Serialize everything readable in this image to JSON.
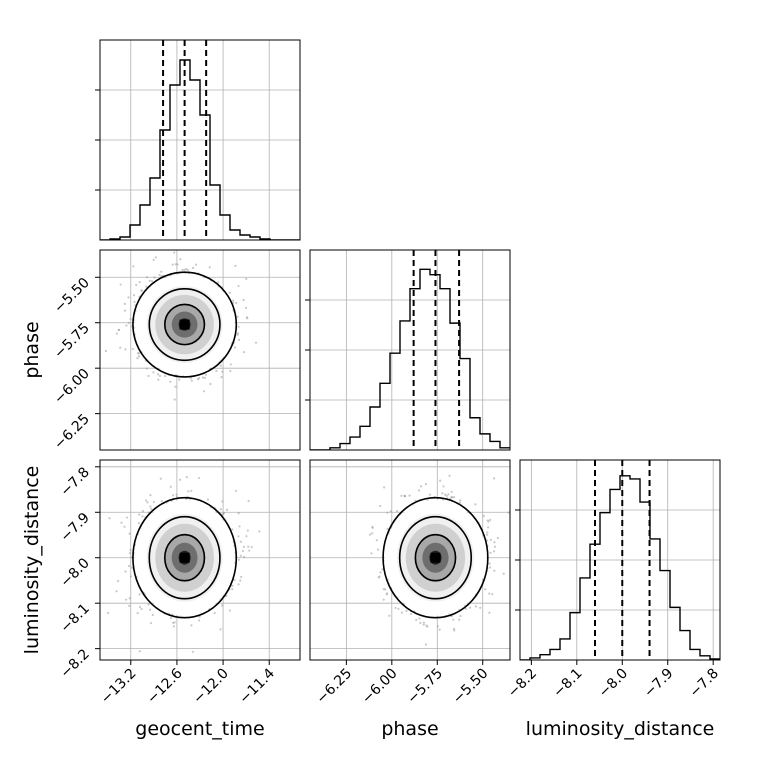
{
  "chart_data": {
    "type": "corner",
    "parameters": [
      {
        "name": "geocent_time",
        "label": "geocent_time",
        "range": [
          -13.6,
          -11.0
        ],
        "ticks": [
          -13.2,
          -12.6,
          -12.0,
          -11.4
        ],
        "tick_labels": [
          "−13.2",
          "−12.6",
          "−12.0",
          "−11.4"
        ],
        "quantiles": [
          -12.78,
          -12.5,
          -12.22
        ],
        "mean": -12.5,
        "sd": 0.28
      },
      {
        "name": "phase",
        "label": "phase",
        "range": [
          -6.45,
          -5.35
        ],
        "ticks": [
          -6.25,
          -6.0,
          -5.75,
          -5.5
        ],
        "tick_labels": [
          "−6.25",
          "−6.00",
          "−5.75",
          "−5.50"
        ],
        "quantiles": [
          -5.88,
          -5.76,
          -5.63
        ],
        "mean": -5.76,
        "sd": 0.12
      },
      {
        "name": "luminosity_distance",
        "label": "luminosity_distance",
        "range": [
          -8.225,
          -7.785
        ],
        "ticks": [
          -8.2,
          -8.1,
          -8.0,
          -7.9,
          -7.8
        ],
        "tick_labels": [
          "−8.2",
          "−8.1",
          "−8.0",
          "−7.9",
          "−7.8"
        ],
        "quantiles": [
          -8.06,
          -8.0,
          -7.94
        ],
        "mean": -8.0,
        "sd": 0.055
      }
    ],
    "histograms": [
      {
        "param": "geocent_time",
        "bin_edges": [
          -13.6,
          -13.47,
          -13.34,
          -13.21,
          -13.08,
          -12.95,
          -12.82,
          -12.69,
          -12.56,
          -12.43,
          -12.3,
          -12.17,
          -12.04,
          -11.91,
          -11.78,
          -11.65,
          -11.52,
          -11.39,
          -11.26,
          -11.13,
          -11.0
        ],
        "counts": [
          0,
          1,
          3,
          15,
          35,
          62,
          110,
          155,
          180,
          160,
          125,
          55,
          25,
          10,
          5,
          3,
          1,
          0,
          0,
          0
        ],
        "ymax": 200
      },
      {
        "param": "phase",
        "bin_edges": [
          -6.45,
          -6.395,
          -6.34,
          -6.285,
          -6.23,
          -6.175,
          -6.12,
          -6.065,
          -6.01,
          -5.955,
          -5.9,
          -5.845,
          -5.79,
          -5.735,
          -5.68,
          -5.625,
          -5.57,
          -5.515,
          -5.46,
          -5.405,
          -5.35
        ],
        "counts": [
          0,
          0,
          2,
          6,
          12,
          22,
          40,
          62,
          90,
          120,
          150,
          168,
          163,
          150,
          118,
          85,
          30,
          15,
          8,
          2
        ],
        "ymax": 186
      },
      {
        "param": "luminosity_distance",
        "bin_edges": [
          -8.225,
          -8.203,
          -8.181,
          -8.159,
          -8.137,
          -8.115,
          -8.093,
          -8.071,
          -8.049,
          -8.027,
          -8.005,
          -7.983,
          -7.961,
          -7.939,
          -7.917,
          -7.895,
          -7.873,
          -7.851,
          -7.829,
          -7.807,
          -7.785
        ],
        "counts": [
          0,
          2,
          5,
          10,
          20,
          45,
          78,
          110,
          140,
          162,
          175,
          172,
          150,
          115,
          85,
          50,
          28,
          10,
          4,
          1
        ],
        "ymax": 190
      }
    ],
    "contour_levels": [
      0.39,
      0.86,
      0.99
    ],
    "grid": true,
    "line_color": "#000000",
    "scatter_color": "#9a9a9a",
    "density_color": "#000000"
  }
}
